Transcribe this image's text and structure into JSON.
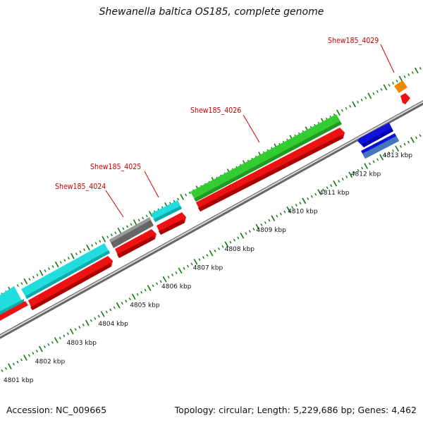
{
  "title": "Shewanella baltica OS185, complete genome",
  "accession": "Accession: NC_009665",
  "summary": "Topology: circular; Length: 5,229,686 bp; Genes: 4,462",
  "ticks": [
    {
      "label": "4801 kbp"
    },
    {
      "label": "4802 kbp"
    },
    {
      "label": "4803 kbp"
    },
    {
      "label": "4804 kbp"
    },
    {
      "label": "4805 kbp"
    },
    {
      "label": "4806 kbp"
    },
    {
      "label": "4807 kbp"
    },
    {
      "label": "4808 kbp"
    },
    {
      "label": "4809 kbp"
    },
    {
      "label": "4810 kbp"
    },
    {
      "label": "4811 kbp"
    },
    {
      "label": "4812 kbp"
    },
    {
      "label": "4813 kbp"
    }
  ],
  "gene_labels": [
    {
      "text": "Shew185_4024"
    },
    {
      "text": "Shew185_4025"
    },
    {
      "text": "Shew185_4026"
    },
    {
      "text": "Shew185_4029"
    }
  ],
  "colors": {
    "cds": "#ee1111",
    "cyan_feature": "#22dddd",
    "green_feature": "#33cc33",
    "gray_feature": "#666666",
    "blue_feature": "#1111dd",
    "steel_feature": "#4477bb",
    "orange_feature": "#ee8800",
    "backbone": "#888888",
    "tick": "#117711",
    "label": "#cc0000"
  }
}
